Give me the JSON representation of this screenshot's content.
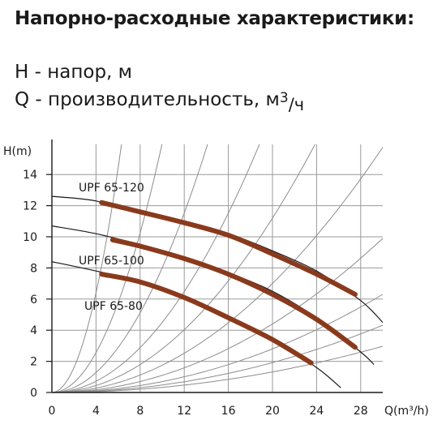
{
  "heading": "Напорно-расходные характеристики:",
  "legend": {
    "h_symbol": "H",
    "h_text": " - напор, м",
    "q_symbol": "Q",
    "q_text": " - производительность, м",
    "q_unit_sup": "3",
    "q_unit_sep": "/",
    "q_unit_den": "ч"
  },
  "chart_data": {
    "type": "line",
    "ylabel": "H(m)",
    "xlabel": "Q(m³/h)",
    "xlim": [
      0,
      30
    ],
    "ylim": [
      0,
      15
    ],
    "x_ticks": [
      0,
      4,
      8,
      12,
      16,
      20,
      24,
      28
    ],
    "y_ticks": [
      0,
      2,
      4,
      6,
      8,
      10,
      12,
      14
    ],
    "grid": true,
    "series": [
      {
        "name": "UPF 65-120",
        "curve": [
          [
            0,
            12.6
          ],
          [
            4,
            12.3
          ],
          [
            8,
            11.5
          ],
          [
            12,
            10.9
          ],
          [
            16,
            10.2
          ],
          [
            20,
            9.1
          ],
          [
            24,
            7.8
          ],
          [
            28,
            5.9
          ],
          [
            30,
            4.5
          ]
        ],
        "operating": [
          [
            4.5,
            12.2
          ],
          [
            8,
            11.6
          ],
          [
            12,
            10.9
          ],
          [
            16,
            10.1
          ],
          [
            20,
            8.9
          ],
          [
            24,
            7.6
          ],
          [
            27.5,
            6.3
          ]
        ]
      },
      {
        "name": "UPF 65-100",
        "curve": [
          [
            0,
            10.7
          ],
          [
            4,
            10.2
          ],
          [
            8,
            9.5
          ],
          [
            12,
            8.7
          ],
          [
            16,
            7.7
          ],
          [
            20,
            6.5
          ],
          [
            24,
            4.8
          ],
          [
            28,
            2.6
          ],
          [
            29.2,
            1.8
          ]
        ],
        "operating": [
          [
            5.5,
            9.8
          ],
          [
            8,
            9.4
          ],
          [
            12,
            8.6
          ],
          [
            16,
            7.6
          ],
          [
            20,
            6.3
          ],
          [
            24,
            4.7
          ],
          [
            27.5,
            2.9
          ]
        ]
      },
      {
        "name": "UPF 65-80",
        "curve": [
          [
            0,
            8.4
          ],
          [
            4,
            7.8
          ],
          [
            8,
            7.1
          ],
          [
            12,
            6.1
          ],
          [
            16,
            4.8
          ],
          [
            20,
            3.4
          ],
          [
            24,
            1.6
          ],
          [
            26.2,
            0.3
          ]
        ],
        "operating": [
          [
            4.5,
            7.6
          ],
          [
            8,
            7.1
          ],
          [
            12,
            6.1
          ],
          [
            16,
            4.8
          ],
          [
            20,
            3.4
          ],
          [
            23.5,
            1.9
          ]
        ]
      }
    ],
    "system_curve_factors": [
      0.4,
      0.16,
      0.08,
      0.045,
      0.028,
      0.0175,
      0.011,
      0.007,
      0.0048,
      0.0033
    ],
    "colors": {
      "operating": "#8a3a1c",
      "curve": "#1a1a1a",
      "grid": "#9a9a9a",
      "system": "#8c8c8c"
    }
  }
}
